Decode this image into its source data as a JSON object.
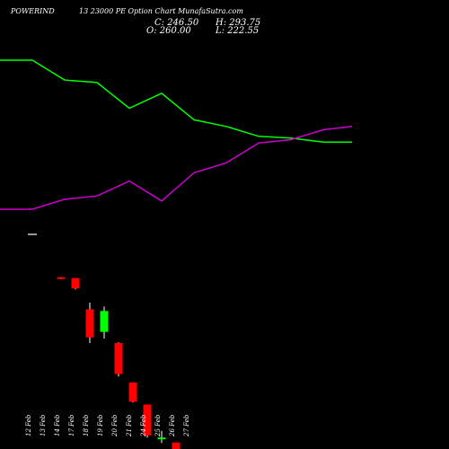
{
  "header": {
    "symbol": "POWERIND",
    "subtitle": "13 23000  PE Option  Chart MunafaSutra.com"
  },
  "ohlc": {
    "close": "C: 246.50",
    "high": "H: 293.75",
    "open": "O: 260.00",
    "low": "L: 222.55"
  },
  "colors": {
    "background": "#000000",
    "up": "#00ff00",
    "down": "#ff0000",
    "line_green": "#00ff00",
    "line_magenta": "#cc00cc",
    "wick": "#ffffff"
  },
  "chart_data": {
    "type": "candlestick",
    "x_labels": [
      "12 Feb",
      "13 Feb",
      "14 Feb",
      "17 Feb",
      "18 Feb",
      "19 Feb",
      "20 Feb",
      "21 Feb",
      "24 Feb",
      "25 Feb",
      "26 Feb",
      "27 Feb"
    ],
    "candles": [
      {
        "date": "12 Feb",
        "open": 40,
        "high": 40,
        "low": 40,
        "close": 40
      },
      {
        "date": "13 Feb",
        "open": 0,
        "high": 0,
        "low": 0,
        "close": 0
      },
      {
        "date": "14 Feb",
        "open": 18.5,
        "high": 18.5,
        "low": 18.0,
        "close": 18.2
      },
      {
        "date": "17 Feb",
        "open": 18.3,
        "high": 18.3,
        "low": 15.6,
        "close": 15.8
      },
      {
        "date": "18 Feb",
        "open": 10.8,
        "high": 12.4,
        "low": 2.7,
        "close": 4.1
      },
      {
        "date": "19 Feb",
        "open": 5.4,
        "high": 11.5,
        "low": 3.8,
        "close": 10.4
      },
      {
        "date": "20 Feb",
        "open": 2.7,
        "high": 2.9,
        "low": -5.3,
        "close": -4.7
      },
      {
        "date": "21 Feb",
        "open": -6.7,
        "high": -6.7,
        "low": -11.5,
        "close": -11.3
      },
      {
        "date": "24 Feb",
        "open": -12.0,
        "high": -12.0,
        "low": -19.9,
        "close": -19.4
      },
      {
        "date": "25 Feb",
        "open": -20.0,
        "high": -18.3,
        "low": -21.2,
        "close": -19.9
      },
      {
        "date": "26 Feb",
        "open": -21.1,
        "high": -21.1,
        "low": -24.6,
        "close": -24.6
      },
      {
        "date": "27 Feb",
        "open": -25.0,
        "high": -23.8,
        "low": -26.2,
        "close": -25.2
      }
    ],
    "lines": [
      {
        "color": "green",
        "values": [
          100,
          100,
          88,
          86.5,
          71,
          80,
          64,
          60,
          54,
          53,
          50.5,
          50.5
        ]
      },
      {
        "color": "magenta",
        "values": [
          10,
          10,
          16,
          18,
          27,
          15,
          32,
          38,
          50,
          52,
          58,
          60
        ]
      }
    ]
  }
}
